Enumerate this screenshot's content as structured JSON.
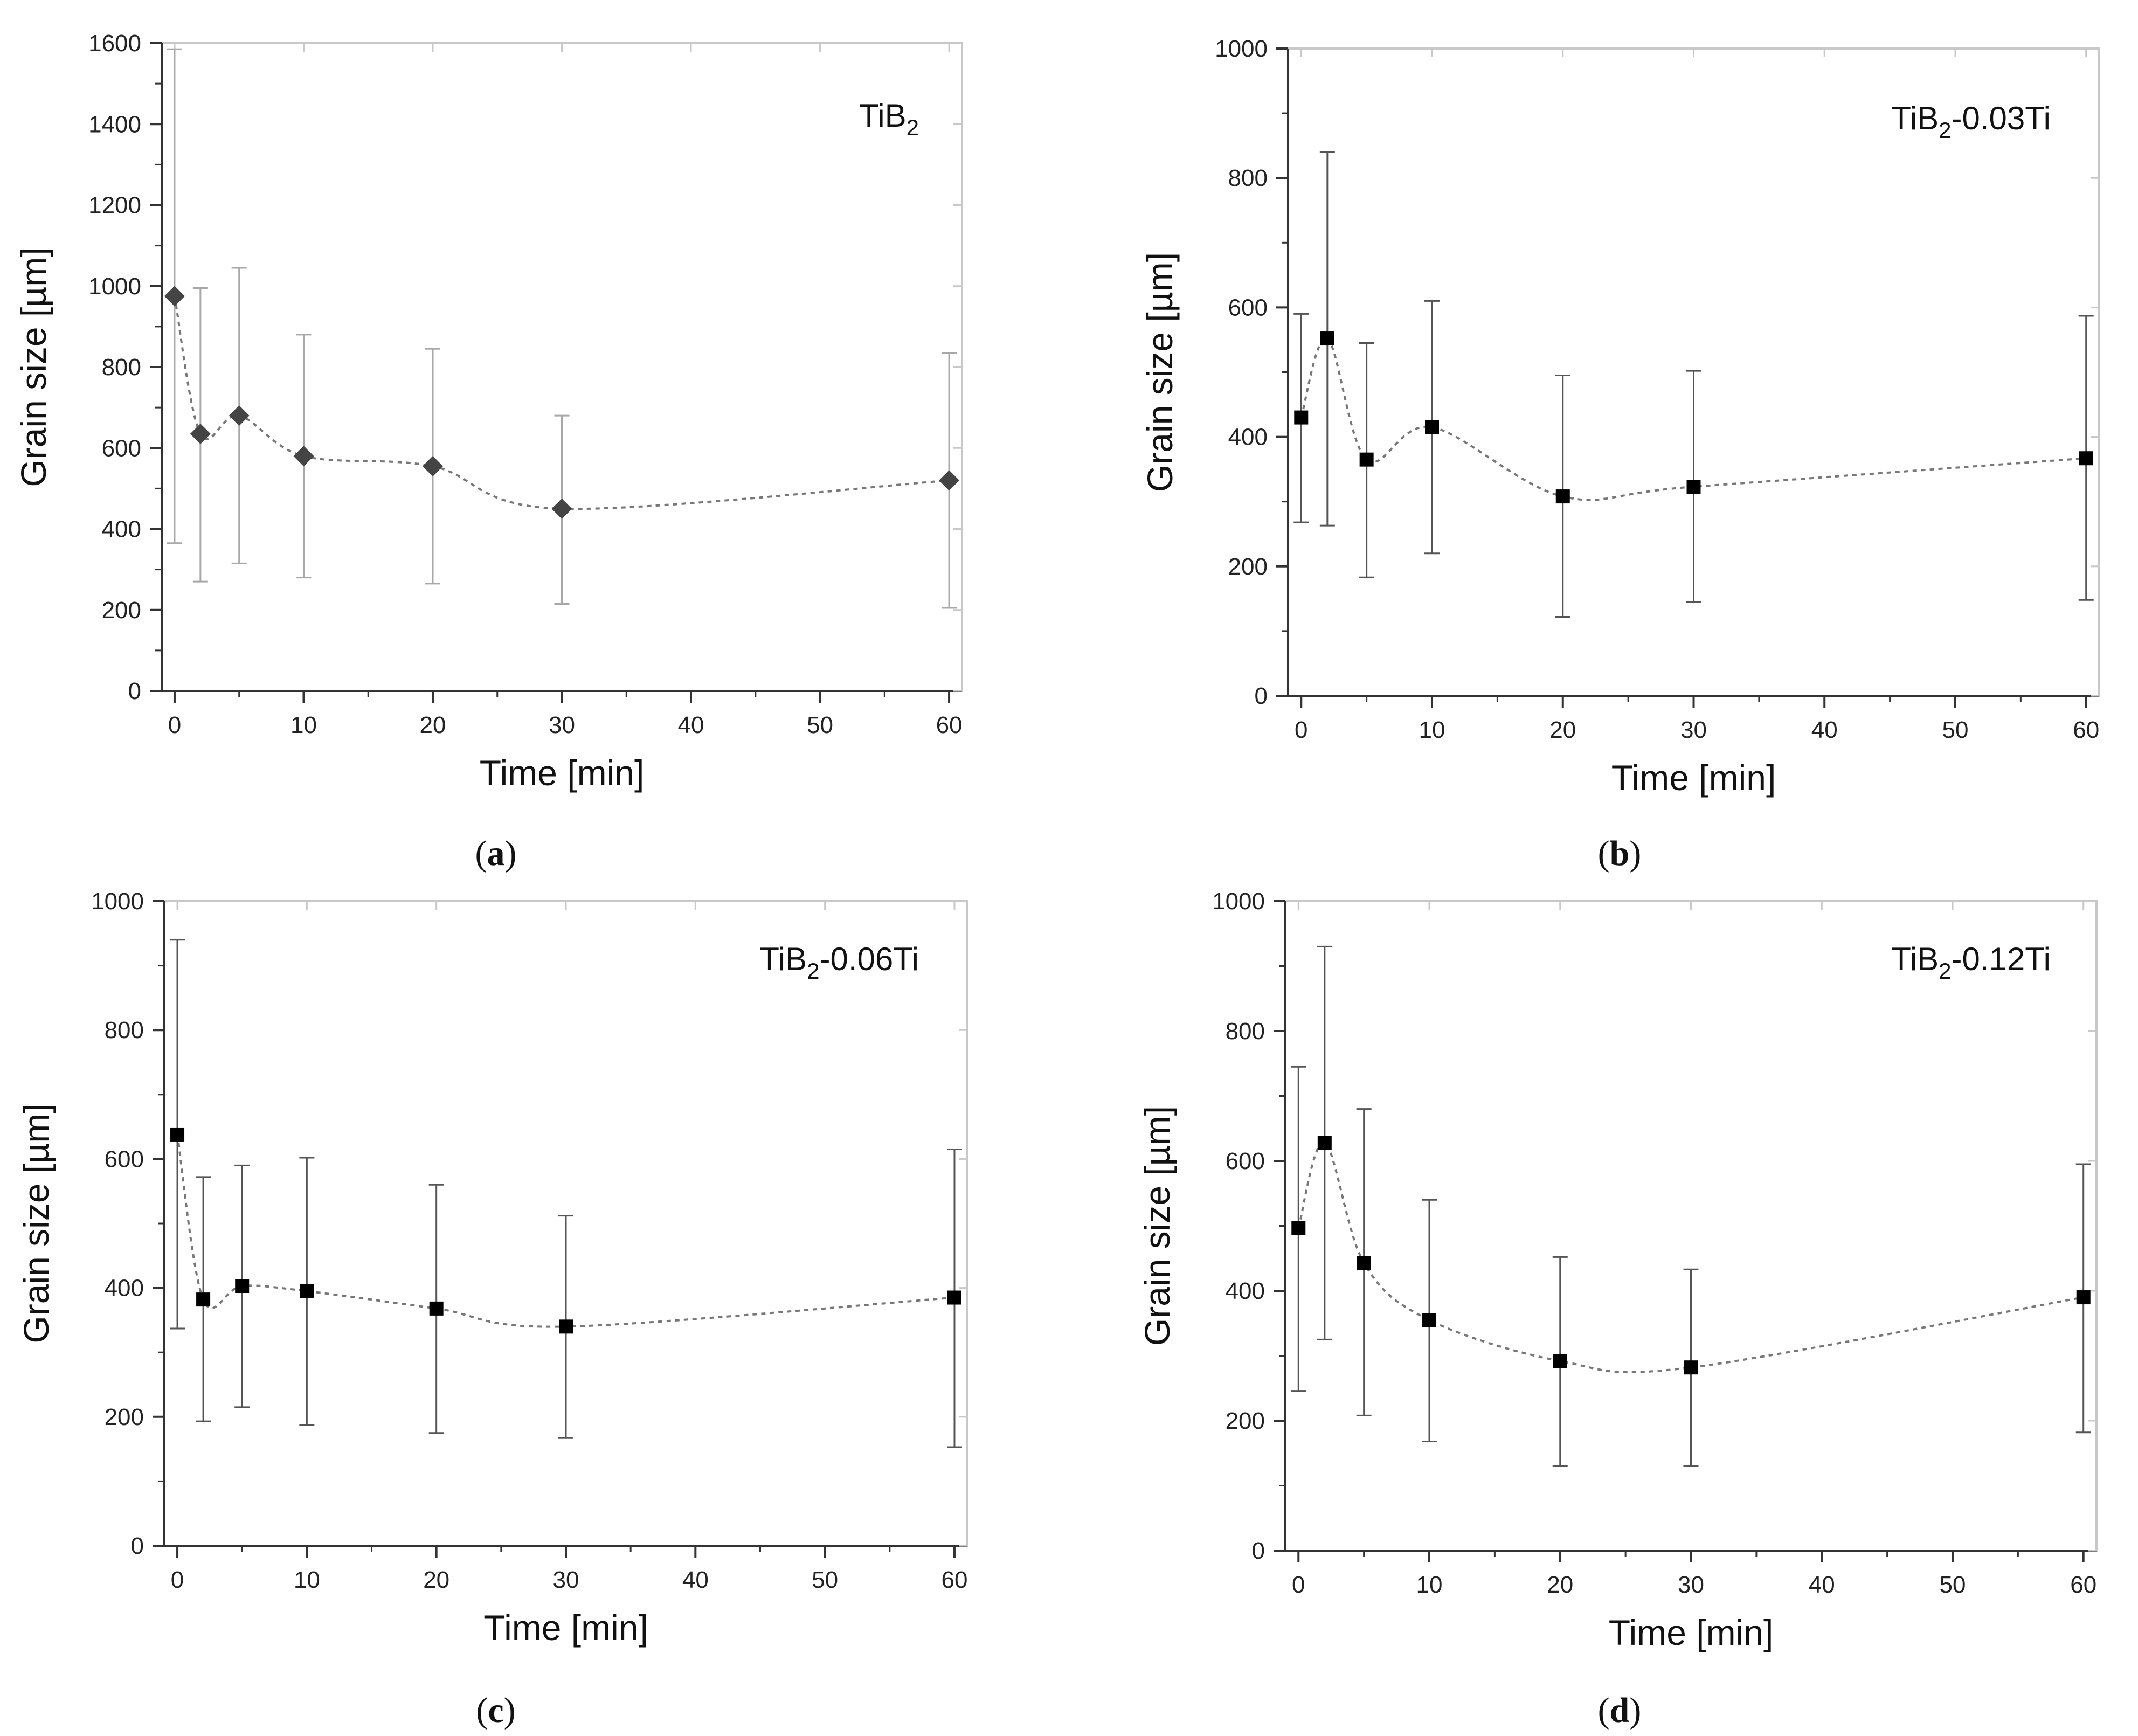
{
  "figure": {
    "panels": [
      "a",
      "b",
      "c",
      "d"
    ]
  },
  "chart_data": [
    {
      "type": "scatter",
      "panel": "a",
      "sample_label": {
        "base": "TiB",
        "sub": "2",
        "suffix": ""
      },
      "xlabel": "Time [min]",
      "ylabel": "Grain size [µm]",
      "xlim": [
        -1,
        61
      ],
      "ylim": [
        0,
        1600
      ],
      "xticks": [
        0,
        10,
        20,
        30,
        40,
        50,
        60
      ],
      "yticks": [
        0,
        200,
        400,
        600,
        800,
        1000,
        1200,
        1400,
        1600
      ],
      "marker": "diamond",
      "marker_color": "#444444",
      "line_style": "dotted-smooth",
      "x": [
        0,
        2,
        5,
        10,
        20,
        30,
        60
      ],
      "y": [
        975,
        635,
        680,
        580,
        555,
        450,
        520
      ],
      "err_low": [
        365,
        270,
        315,
        280,
        265,
        215,
        205
      ],
      "err_high": [
        1585,
        995,
        1045,
        880,
        845,
        680,
        835
      ],
      "grid": false
    },
    {
      "type": "scatter",
      "panel": "b",
      "sample_label": {
        "base": "TiB",
        "sub": "2",
        "suffix": "-0.03Ti"
      },
      "xlabel": "Time [min]",
      "ylabel": "Grain size [µm]",
      "xlim": [
        -1,
        61
      ],
      "ylim": [
        0,
        1000
      ],
      "xticks": [
        0,
        10,
        20,
        30,
        40,
        50,
        60
      ],
      "yticks": [
        0,
        200,
        400,
        600,
        800,
        1000
      ],
      "marker": "square",
      "marker_color": "#000000",
      "line_style": "dotted-smooth",
      "x": [
        0,
        2,
        5,
        10,
        20,
        30,
        60
      ],
      "y": [
        430,
        552,
        365,
        415,
        308,
        323,
        367
      ],
      "err_low": [
        268,
        263,
        183,
        220,
        122,
        145,
        148
      ],
      "err_high": [
        590,
        840,
        545,
        610,
        495,
        502,
        587
      ],
      "grid": false
    },
    {
      "type": "scatter",
      "panel": "c",
      "sample_label": {
        "base": "TiB",
        "sub": "2",
        "suffix": "-0.06Ti"
      },
      "xlabel": "Time [min]",
      "ylabel": "Grain size [µm]",
      "xlim": [
        -1,
        61
      ],
      "ylim": [
        0,
        1000
      ],
      "xticks": [
        0,
        10,
        20,
        30,
        40,
        50,
        60
      ],
      "yticks": [
        0,
        200,
        400,
        600,
        800,
        1000
      ],
      "marker": "square",
      "marker_color": "#000000",
      "line_style": "dotted-smooth",
      "x": [
        0,
        2,
        5,
        10,
        20,
        30,
        60
      ],
      "y": [
        638,
        382,
        403,
        395,
        368,
        340,
        385
      ],
      "err_low": [
        337,
        193,
        215,
        187,
        175,
        167,
        153
      ],
      "err_high": [
        940,
        572,
        590,
        602,
        560,
        512,
        615
      ],
      "grid": false
    },
    {
      "type": "scatter",
      "panel": "d",
      "sample_label": {
        "base": "TiB",
        "sub": "2",
        "suffix": "-0.12Ti"
      },
      "xlabel": "Time [min]",
      "ylabel": "Grain size [µm]",
      "xlim": [
        -1,
        61
      ],
      "ylim": [
        0,
        1000
      ],
      "xticks": [
        0,
        10,
        20,
        30,
        40,
        50,
        60
      ],
      "yticks": [
        0,
        200,
        400,
        600,
        800,
        1000
      ],
      "marker": "square",
      "marker_color": "#000000",
      "line_style": "dotted-smooth",
      "x": [
        0,
        2,
        5,
        10,
        20,
        30,
        60
      ],
      "y": [
        497,
        628,
        443,
        355,
        292,
        282,
        390
      ],
      "err_low": [
        246,
        325,
        208,
        168,
        130,
        130,
        182
      ],
      "err_high": [
        745,
        930,
        680,
        540,
        452,
        433,
        595
      ],
      "grid": false
    }
  ]
}
